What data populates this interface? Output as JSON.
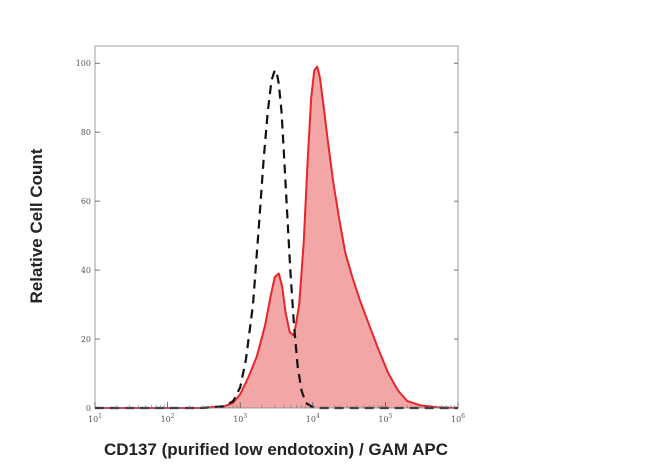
{
  "chart_data": {
    "type": "area",
    "xlabel": "CD137 (purified low endotoxin) / GAM APC",
    "ylabel": "Relative Cell Count",
    "x_scale": "log10",
    "xlim": [
      10,
      1000000
    ],
    "ylim": [
      0,
      105
    ],
    "x_ticks": [
      10,
      100,
      1000,
      10000,
      100000,
      1000000
    ],
    "x_tick_labels": [
      {
        "base": "10",
        "exp": "1"
      },
      {
        "base": "10",
        "exp": "2"
      },
      {
        "base": "10",
        "exp": "3"
      },
      {
        "base": "10",
        "exp": "4"
      },
      {
        "base": "10",
        "exp": "5"
      },
      {
        "base": "10",
        "exp": "6"
      }
    ],
    "y_ticks": [
      0,
      20,
      40,
      60,
      80,
      100
    ],
    "y_tick_labels": [
      "0",
      "20",
      "40",
      "60",
      "80",
      "100"
    ],
    "grid": false,
    "series": [
      {
        "style": "filled",
        "color": "#e8252a",
        "fill": "#f3a6a6",
        "x": [
          10,
          300,
          600,
          800,
          1000,
          1300,
          1700,
          2200,
          2600,
          3000,
          3400,
          3800,
          4200,
          4800,
          5500,
          6500,
          7500,
          8500,
          9500,
          10500,
          11500,
          12500,
          14000,
          16000,
          19000,
          23000,
          28000,
          35000,
          45000,
          60000,
          80000,
          110000,
          150000,
          200000,
          300000,
          500000,
          1000000
        ],
        "y": [
          0,
          0,
          0.5,
          1.5,
          4,
          9,
          15,
          24,
          32,
          38,
          39,
          35,
          28,
          22,
          21,
          30,
          48,
          72,
          90,
          98,
          99,
          96,
          88,
          78,
          66,
          55,
          45,
          38,
          31,
          24,
          17,
          10,
          5,
          2,
          0.8,
          0.2,
          0
        ]
      },
      {
        "style": "dashed",
        "color": "#111111",
        "x": [
          10,
          300,
          600,
          800,
          1000,
          1200,
          1500,
          1800,
          2100,
          2400,
          2700,
          3000,
          3200,
          3400,
          3700,
          4000,
          4400,
          4900,
          5500,
          6200,
          7000,
          8000,
          9500,
          11000,
          14000,
          20000,
          1000000
        ],
        "y": [
          0,
          0,
          0.5,
          2,
          6,
          14,
          30,
          52,
          72,
          86,
          95,
          98,
          97,
          94,
          86,
          74,
          58,
          40,
          24,
          12,
          5,
          1.5,
          0.5,
          0,
          0,
          0,
          0
        ]
      }
    ]
  }
}
